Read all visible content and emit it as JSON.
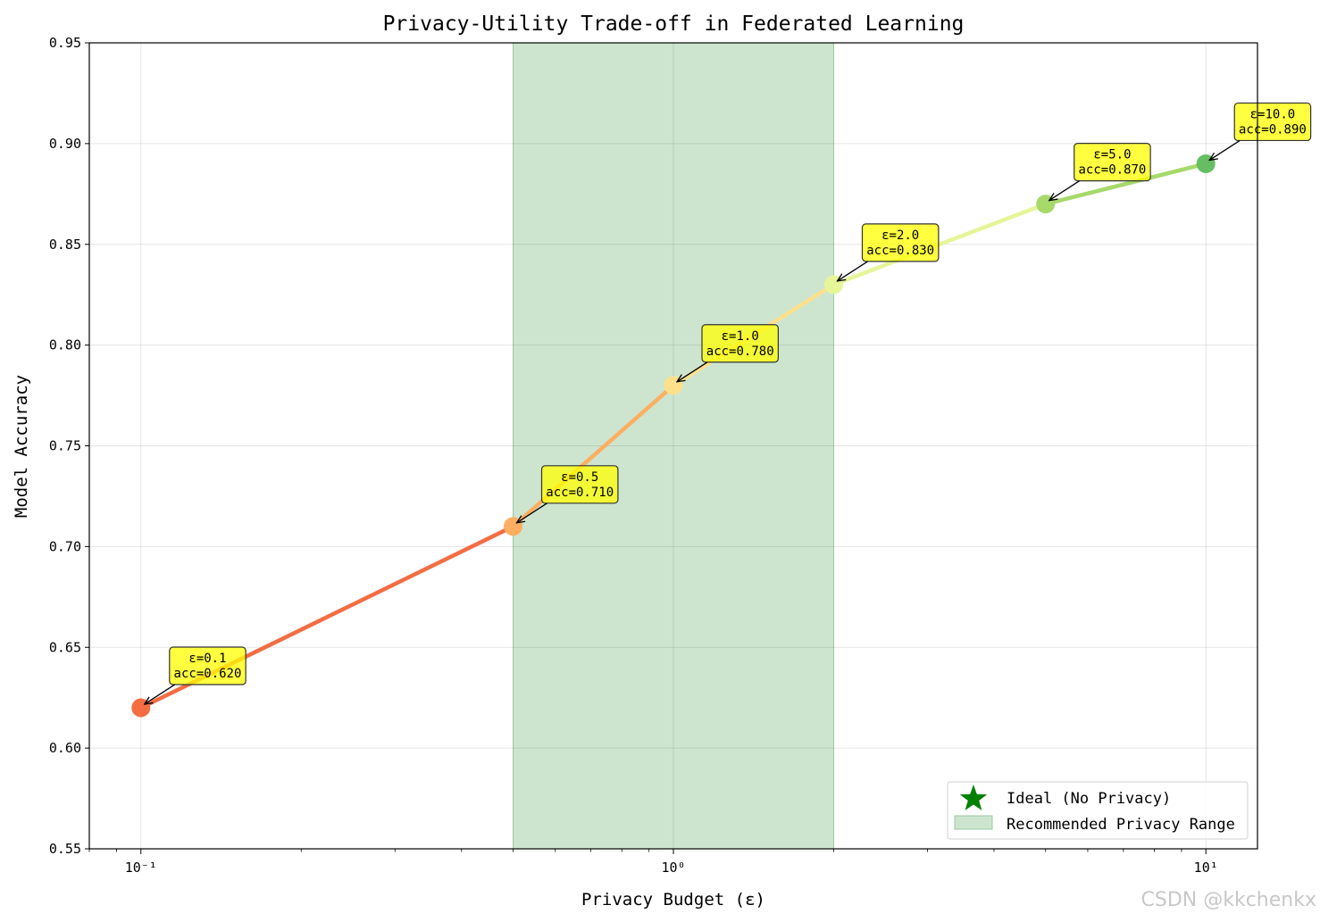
{
  "chart_data": {
    "type": "line",
    "title": "Privacy-Utility Trade-off in Federated Learning",
    "xlabel": "Privacy Budget (ε)",
    "ylabel": "Model Accuracy",
    "xscale": "log",
    "xlim": [
      0.08,
      12.5
    ],
    "ylim": [
      0.55,
      0.95
    ],
    "grid": true,
    "x": [
      0.1,
      0.5,
      1.0,
      2.0,
      5.0,
      10.0
    ],
    "y": [
      0.62,
      0.71,
      0.78,
      0.83,
      0.87,
      0.89
    ],
    "point_colors": [
      "#f46d43",
      "#fdae61",
      "#fee08b",
      "#e6f598",
      "#a6d96a",
      "#66bd63"
    ],
    "segment_colors": [
      "#f46d43",
      "#fdae61",
      "#fee08b",
      "#e6f598",
      "#a6d96a"
    ],
    "x_ticks": [
      {
        "value": 0.1,
        "label": "10⁻¹"
      },
      {
        "value": 1.0,
        "label": "10⁰"
      },
      {
        "value": 10.0,
        "label": "10¹"
      }
    ],
    "y_ticks": [
      "0.55",
      "0.60",
      "0.65",
      "0.70",
      "0.75",
      "0.80",
      "0.85",
      "0.90",
      "0.95"
    ],
    "annotations": [
      {
        "x": 0.1,
        "y": 0.62,
        "line1": "ε=0.1",
        "line2": "acc=0.620"
      },
      {
        "x": 0.5,
        "y": 0.71,
        "line1": "ε=0.5",
        "line2": "acc=0.710"
      },
      {
        "x": 1.0,
        "y": 0.78,
        "line1": "ε=1.0",
        "line2": "acc=0.780"
      },
      {
        "x": 2.0,
        "y": 0.83,
        "line1": "ε=2.0",
        "line2": "acc=0.830"
      },
      {
        "x": 5.0,
        "y": 0.87,
        "line1": "ε=5.0",
        "line2": "acc=0.870"
      },
      {
        "x": 10.0,
        "y": 0.89,
        "line1": "ε=10.0",
        "line2": "acc=0.890"
      }
    ],
    "shaded_range": {
      "x": [
        0.5,
        2.0
      ],
      "color": "#cde5cf"
    },
    "legend": {
      "placement": "lower-right",
      "entries": [
        {
          "label": "Ideal (No Privacy)",
          "marker": "star",
          "color": "#008000"
        },
        {
          "label": "Recommended Privacy Range",
          "marker": "patch",
          "color": "#cde5cf"
        }
      ]
    },
    "watermark": "CSDN @kkchenkx"
  }
}
